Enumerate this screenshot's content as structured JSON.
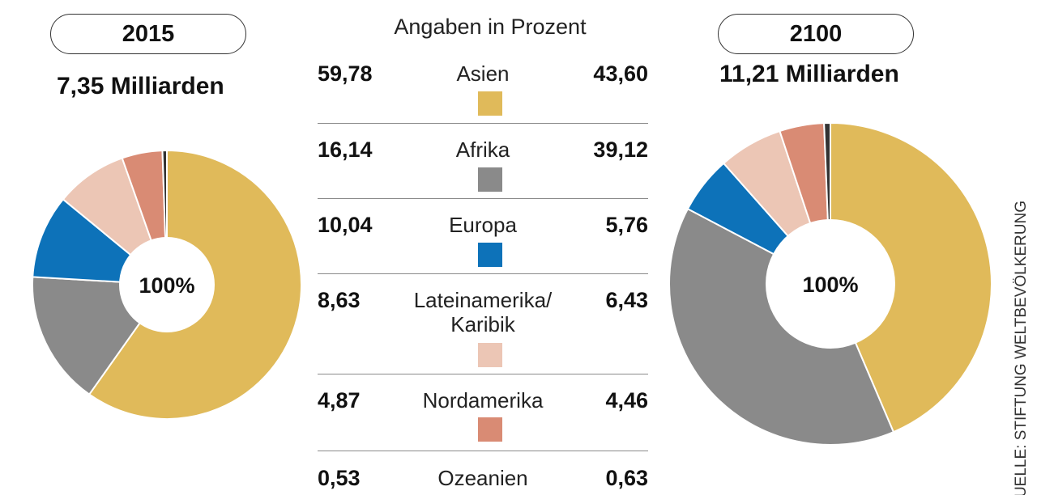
{
  "header": {
    "subtitle": "Angaben in Prozent"
  },
  "left": {
    "year": "2015",
    "total": "7,35 Milliarden",
    "center_label": "100%"
  },
  "right": {
    "year": "2100",
    "total": "11,21 Milliarden",
    "center_label": "100%"
  },
  "source": "QUELLE: STIFTUNG WELTBEVÖLKERUNG",
  "colors": {
    "asien": "#e0ba5a",
    "afrika": "#8a8a8a",
    "europa": "#0d72b9",
    "lateinamerika": "#ecc6b5",
    "nordamerika": "#d98b74",
    "ozeanien": "#333333"
  },
  "chart_data": [
    {
      "type": "pie",
      "title": "2015",
      "subtitle": "7,35 Milliarden",
      "categories": [
        "Asien",
        "Afrika",
        "Europa",
        "Lateinamerika/Karibik",
        "Nordamerika",
        "Ozeanien"
      ],
      "values": [
        59.78,
        16.14,
        10.04,
        8.63,
        4.87,
        0.53
      ],
      "value_labels": [
        "59,78",
        "16,14",
        "10,04",
        "8,63",
        "4,87",
        "0,53"
      ],
      "colors": [
        "#e0ba5a",
        "#8a8a8a",
        "#0d72b9",
        "#ecc6b5",
        "#d98b74",
        "#333333"
      ],
      "center_label": "100%",
      "unit": "Angaben in Prozent"
    },
    {
      "type": "pie",
      "title": "2100",
      "subtitle": "11,21 Milliarden",
      "categories": [
        "Asien",
        "Afrika",
        "Europa",
        "Lateinamerika/Karibik",
        "Nordamerika",
        "Ozeanien"
      ],
      "values": [
        43.6,
        39.12,
        5.76,
        6.43,
        4.46,
        0.63
      ],
      "value_labels": [
        "43,60",
        "39,12",
        "5,76",
        "6,43",
        "4,46",
        "0,63"
      ],
      "colors": [
        "#e0ba5a",
        "#8a8a8a",
        "#0d72b9",
        "#ecc6b5",
        "#d98b74",
        "#333333"
      ],
      "center_label": "100%",
      "unit": "Angaben in Prozent"
    }
  ],
  "legend": [
    {
      "name_line1": "Asien",
      "name_line2": "",
      "v2015": "59,78",
      "v2100": "43,60",
      "color_key": "asien"
    },
    {
      "name_line1": "Afrika",
      "name_line2": "",
      "v2015": "16,14",
      "v2100": "39,12",
      "color_key": "afrika"
    },
    {
      "name_line1": "Europa",
      "name_line2": "",
      "v2015": "10,04",
      "v2100": "5,76",
      "color_key": "europa"
    },
    {
      "name_line1": "Lateinamerika/",
      "name_line2": "Karibik",
      "v2015": "8,63",
      "v2100": "6,43",
      "color_key": "lateinamerika"
    },
    {
      "name_line1": "Nordamerika",
      "name_line2": "",
      "v2015": "4,87",
      "v2100": "4,46",
      "color_key": "nordamerika"
    },
    {
      "name_line1": "Ozeanien",
      "name_line2": "",
      "v2015": "0,53",
      "v2100": "0,63",
      "color_key": "ozeanien"
    }
  ]
}
